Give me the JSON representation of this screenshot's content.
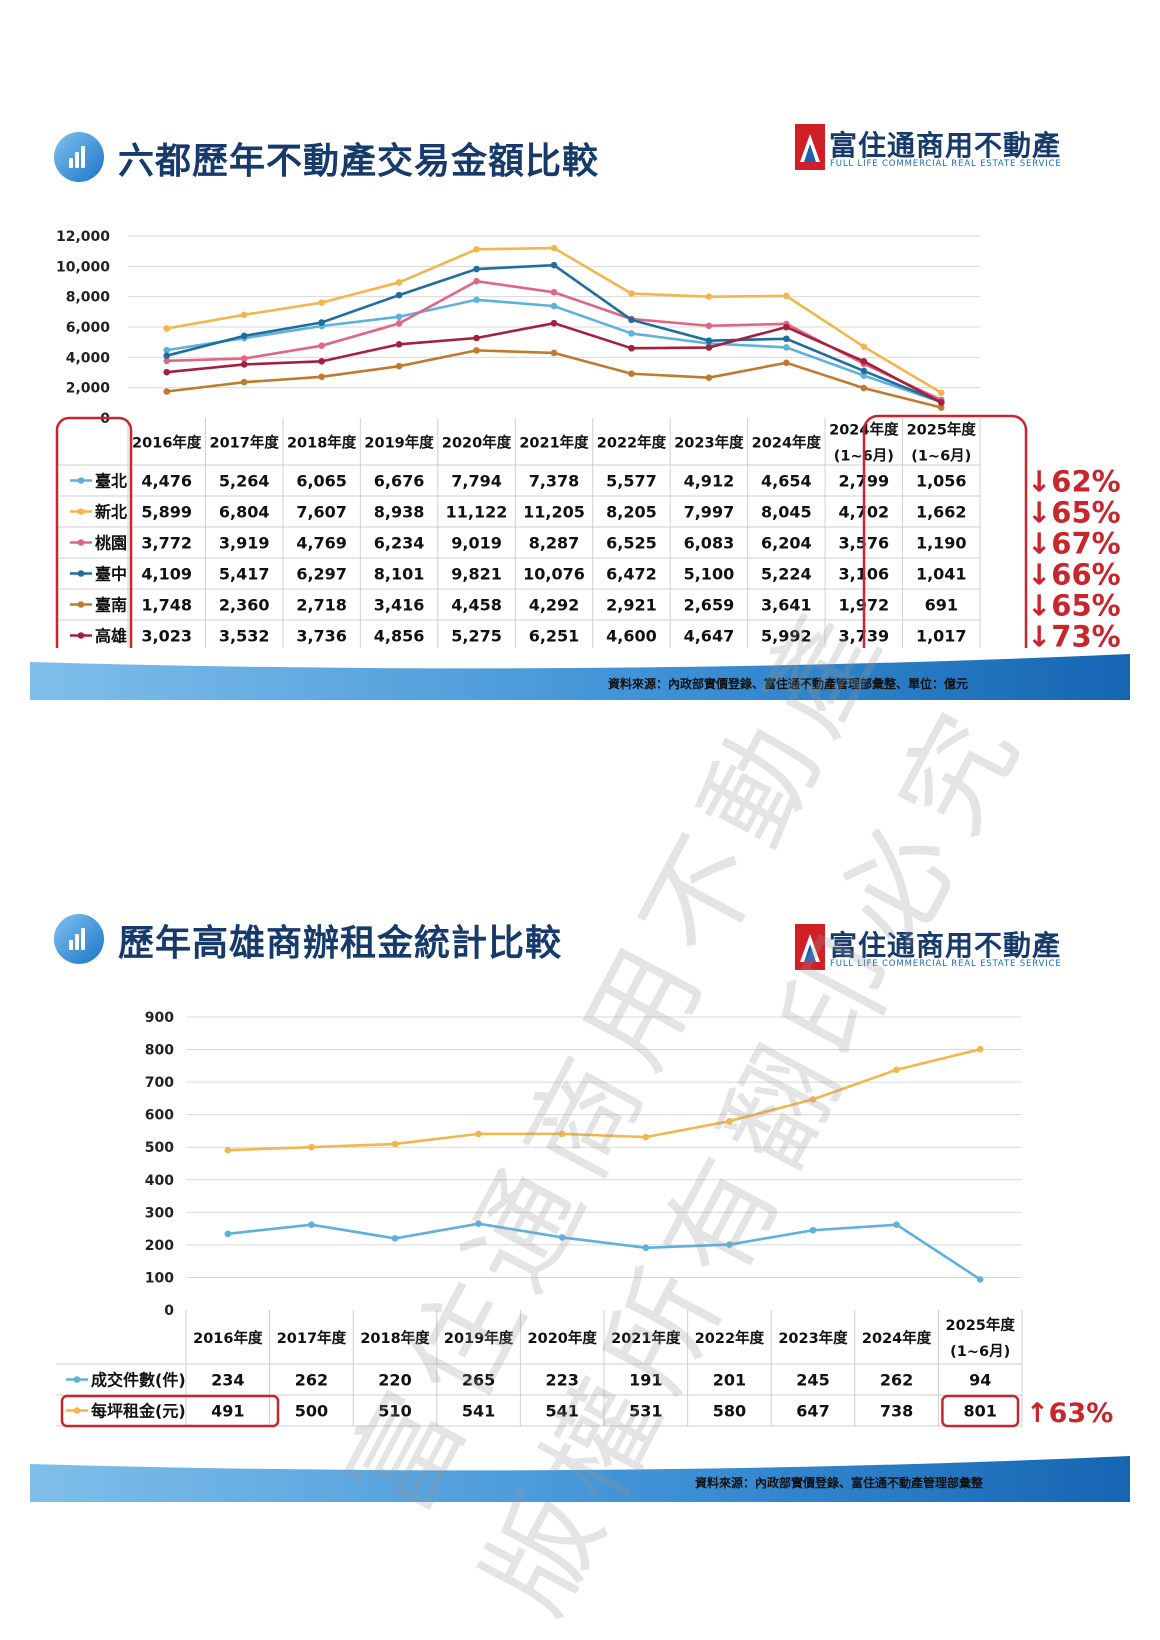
{
  "section1": {
    "title": "六都歷年不動產交易金額比較",
    "source": "資料來源：內政部實價登錄、富住通不動產管理部彙整、單位：億元",
    "changes": [
      "↓62%",
      "↓65%",
      "↓67%",
      "↓66%",
      "↓65%",
      "↓73%"
    ]
  },
  "section2": {
    "title": "歷年高雄商辦租金統計比較",
    "source": "資料來源：內政部實價登錄、富住通不動產管理部彙整",
    "change": "↑63%"
  },
  "brand": {
    "name": "富住通商用不動產",
    "subtitle": "FULL LIFE COMMERCIAL REAL ESTATE SERVICE"
  },
  "watermark": {
    "line1": "富住通商用不動產",
    "line2": "版權所有翻印必究"
  },
  "colors": {
    "title": "#163a6b",
    "accent_red": "#c8252c",
    "band_dark": "#1565b2",
    "band_light": "#eef5fc"
  },
  "chart_data": [
    {
      "type": "line",
      "categories": [
        [
          "2016年度"
        ],
        [
          "2017年度"
        ],
        [
          "2018年度"
        ],
        [
          "2019年度"
        ],
        [
          "2020年度"
        ],
        [
          "2021年度"
        ],
        [
          "2022年度"
        ],
        [
          "2023年度"
        ],
        [
          "2024年度"
        ],
        [
          "2024年度",
          "(1~6月)"
        ],
        [
          "2025年度",
          "(1~6月)"
        ]
      ],
      "ylim": [
        0,
        12000
      ],
      "yticks": [
        "0",
        "2,000",
        "4,000",
        "6,000",
        "8,000",
        "10,000",
        "12,000"
      ],
      "grid": true,
      "legend": "data table",
      "series": [
        {
          "name": "臺北",
          "color": "#5fb0dd",
          "values": [
            4476,
            5264,
            6065,
            6676,
            7794,
            7378,
            5577,
            4912,
            4654,
            2799,
            1056
          ],
          "labels": [
            "4,476",
            "5,264",
            "6,065",
            "6,676",
            "7,794",
            "7,378",
            "5,577",
            "4,912",
            "4,654",
            "2,799",
            "1,056"
          ]
        },
        {
          "name": "新北",
          "color": "#f2b64c",
          "values": [
            5899,
            6804,
            7607,
            8938,
            11122,
            11205,
            8205,
            7997,
            8045,
            4702,
            1662
          ],
          "labels": [
            "5,899",
            "6,804",
            "7,607",
            "8,938",
            "11,122",
            "11,205",
            "8,205",
            "7,997",
            "8,045",
            "4,702",
            "1,662"
          ]
        },
        {
          "name": "桃園",
          "color": "#df6786",
          "values": [
            3772,
            3919,
            4769,
            6234,
            9019,
            8287,
            6525,
            6083,
            6204,
            3576,
            1190
          ],
          "labels": [
            "3,772",
            "3,919",
            "4,769",
            "6,234",
            "9,019",
            "8,287",
            "6,525",
            "6,083",
            "6,204",
            "3,576",
            "1,190"
          ]
        },
        {
          "name": "臺中",
          "color": "#1f6e9e",
          "values": [
            4109,
            5417,
            6297,
            8101,
            9821,
            10076,
            6472,
            5100,
            5224,
            3106,
            1041
          ],
          "labels": [
            "4,109",
            "5,417",
            "6,297",
            "8,101",
            "9,821",
            "10,076",
            "6,472",
            "5,100",
            "5,224",
            "3,106",
            "1,041"
          ]
        },
        {
          "name": "臺南",
          "color": "#c07a2c",
          "values": [
            1748,
            2360,
            2718,
            3416,
            4458,
            4292,
            2921,
            2659,
            3641,
            1972,
            691
          ],
          "labels": [
            "1,748",
            "2,360",
            "2,718",
            "3,416",
            "4,458",
            "4,292",
            "2,921",
            "2,659",
            "3,641",
            "1,972",
            "691"
          ]
        },
        {
          "name": "高雄",
          "color": "#a3213c",
          "values": [
            3023,
            3532,
            3736,
            4856,
            5275,
            6251,
            4600,
            4647,
            5992,
            3739,
            1017
          ],
          "labels": [
            "3,023",
            "3,532",
            "3,736",
            "4,856",
            "5,275",
            "6,251",
            "4,600",
            "4,647",
            "5,992",
            "3,739",
            "1,017"
          ]
        }
      ]
    },
    {
      "type": "line",
      "categories": [
        [
          "2016年度"
        ],
        [
          "2017年度"
        ],
        [
          "2018年度"
        ],
        [
          "2019年度"
        ],
        [
          "2020年度"
        ],
        [
          "2021年度"
        ],
        [
          "2022年度"
        ],
        [
          "2023年度"
        ],
        [
          "2024年度"
        ],
        [
          "2025年度",
          "(1~6月)"
        ]
      ],
      "ylim": [
        0,
        900
      ],
      "yticks": [
        "0",
        "100",
        "200",
        "300",
        "400",
        "500",
        "600",
        "700",
        "800",
        "900"
      ],
      "grid": true,
      "legend": "data table",
      "series": [
        {
          "name": "成交件數(件)",
          "color": "#5fb0dd",
          "values": [
            234,
            262,
            220,
            265,
            223,
            191,
            201,
            245,
            262,
            94
          ],
          "labels": [
            "234",
            "262",
            "220",
            "265",
            "223",
            "191",
            "201",
            "245",
            "262",
            "94"
          ]
        },
        {
          "name": "每坪租金(元)",
          "color": "#f2b64c",
          "values": [
            491,
            500,
            510,
            541,
            541,
            531,
            580,
            647,
            738,
            801
          ],
          "labels": [
            "491",
            "500",
            "510",
            "541",
            "541",
            "531",
            "580",
            "647",
            "738",
            "801"
          ]
        }
      ]
    }
  ]
}
